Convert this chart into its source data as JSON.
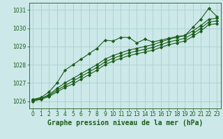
{
  "title": "Graphe pression niveau de la mer (hPa)",
  "bg_color": "#cce8e8",
  "grid_color": "#aacfcf",
  "line_color": "#1a5c1a",
  "x_values": [
    0,
    1,
    2,
    3,
    4,
    5,
    6,
    7,
    8,
    9,
    10,
    11,
    12,
    13,
    14,
    15,
    16,
    17,
    18,
    19,
    20,
    21,
    22,
    23
  ],
  "series": [
    [
      1026.1,
      1026.2,
      1026.5,
      1027.0,
      1027.7,
      1028.0,
      1028.3,
      1028.6,
      1028.9,
      1029.35,
      1029.3,
      1029.5,
      1029.5,
      1029.2,
      1029.4,
      1029.25,
      1029.35,
      1029.45,
      1029.55,
      1029.6,
      1030.05,
      1030.5,
      1031.1,
      1030.65
    ],
    [
      1026.05,
      1026.15,
      1026.35,
      1026.7,
      1027.0,
      1027.25,
      1027.5,
      1027.75,
      1028.0,
      1028.3,
      1028.5,
      1028.65,
      1028.8,
      1028.9,
      1029.0,
      1029.1,
      1029.25,
      1029.4,
      1029.5,
      1029.6,
      1029.85,
      1030.15,
      1030.5,
      1030.55
    ],
    [
      1026.05,
      1026.15,
      1026.3,
      1026.6,
      1026.85,
      1027.1,
      1027.35,
      1027.6,
      1027.85,
      1028.15,
      1028.35,
      1028.5,
      1028.65,
      1028.75,
      1028.85,
      1028.95,
      1029.1,
      1029.25,
      1029.35,
      1029.45,
      1029.7,
      1030.0,
      1030.35,
      1030.4
    ],
    [
      1026.0,
      1026.1,
      1026.25,
      1026.5,
      1026.75,
      1026.95,
      1027.2,
      1027.45,
      1027.7,
      1028.0,
      1028.2,
      1028.35,
      1028.5,
      1028.6,
      1028.7,
      1028.8,
      1028.95,
      1029.1,
      1029.2,
      1029.3,
      1029.55,
      1029.85,
      1030.2,
      1030.25
    ]
  ],
  "ylim": [
    1025.6,
    1031.4
  ],
  "yticks": [
    1026,
    1027,
    1028,
    1029,
    1030,
    1031
  ],
  "xlim": [
    -0.5,
    23.5
  ],
  "xticks": [
    0,
    1,
    2,
    3,
    4,
    5,
    6,
    7,
    8,
    9,
    10,
    11,
    12,
    13,
    14,
    15,
    16,
    17,
    18,
    19,
    20,
    21,
    22,
    23
  ],
  "marker": "D",
  "marker_size": 2.2,
  "line_width": 0.8,
  "title_fontsize": 7,
  "tick_fontsize": 5.5
}
